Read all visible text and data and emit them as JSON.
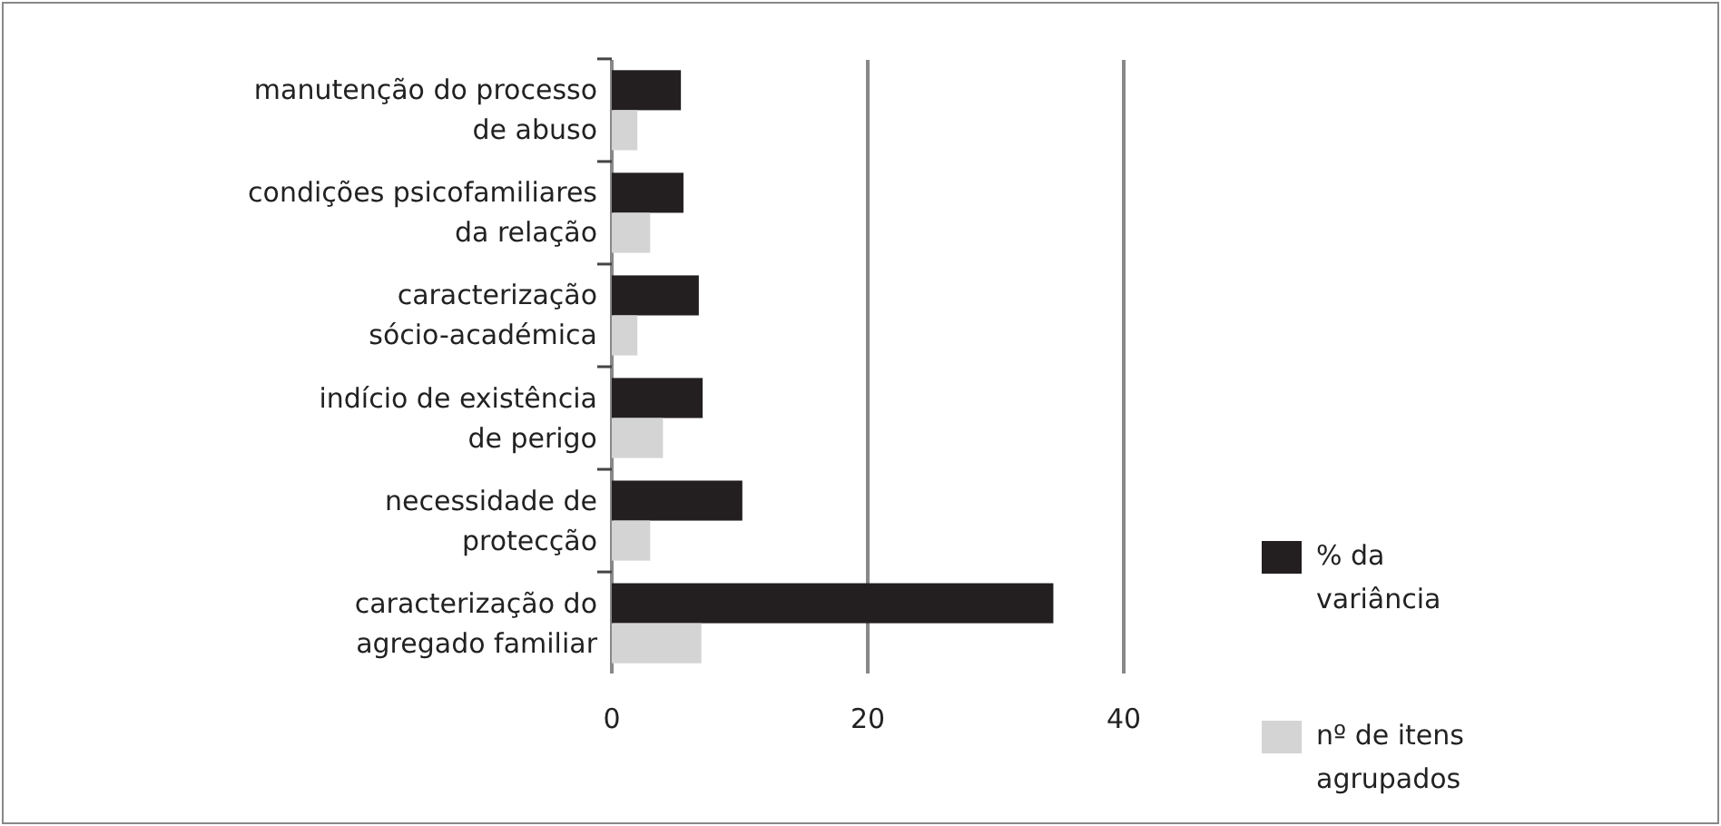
{
  "chart_data": {
    "type": "bar",
    "orientation": "horizontal",
    "categories": [
      "manutenção do processo\nde abuso",
      "condições psicofamiliares\nda relação",
      "caracterização\nsócio-académica",
      "indício de existência\nde perigo",
      "necessidade de\nprotecção",
      "caracterização do\nagregado familiar"
    ],
    "series": [
      {
        "name": "% da\nvariância",
        "color": "#231f20",
        "values": [
          5.4,
          5.6,
          6.8,
          7.1,
          10.2,
          34.5
        ]
      },
      {
        "name": "nº de itens\nagrupados",
        "color": "#d4d4d4",
        "values": [
          2,
          3,
          2,
          4,
          3,
          7
        ]
      }
    ],
    "xlim": [
      0,
      40
    ],
    "xticks": [
      0,
      20,
      40
    ],
    "grid": "x",
    "legend": "right"
  }
}
